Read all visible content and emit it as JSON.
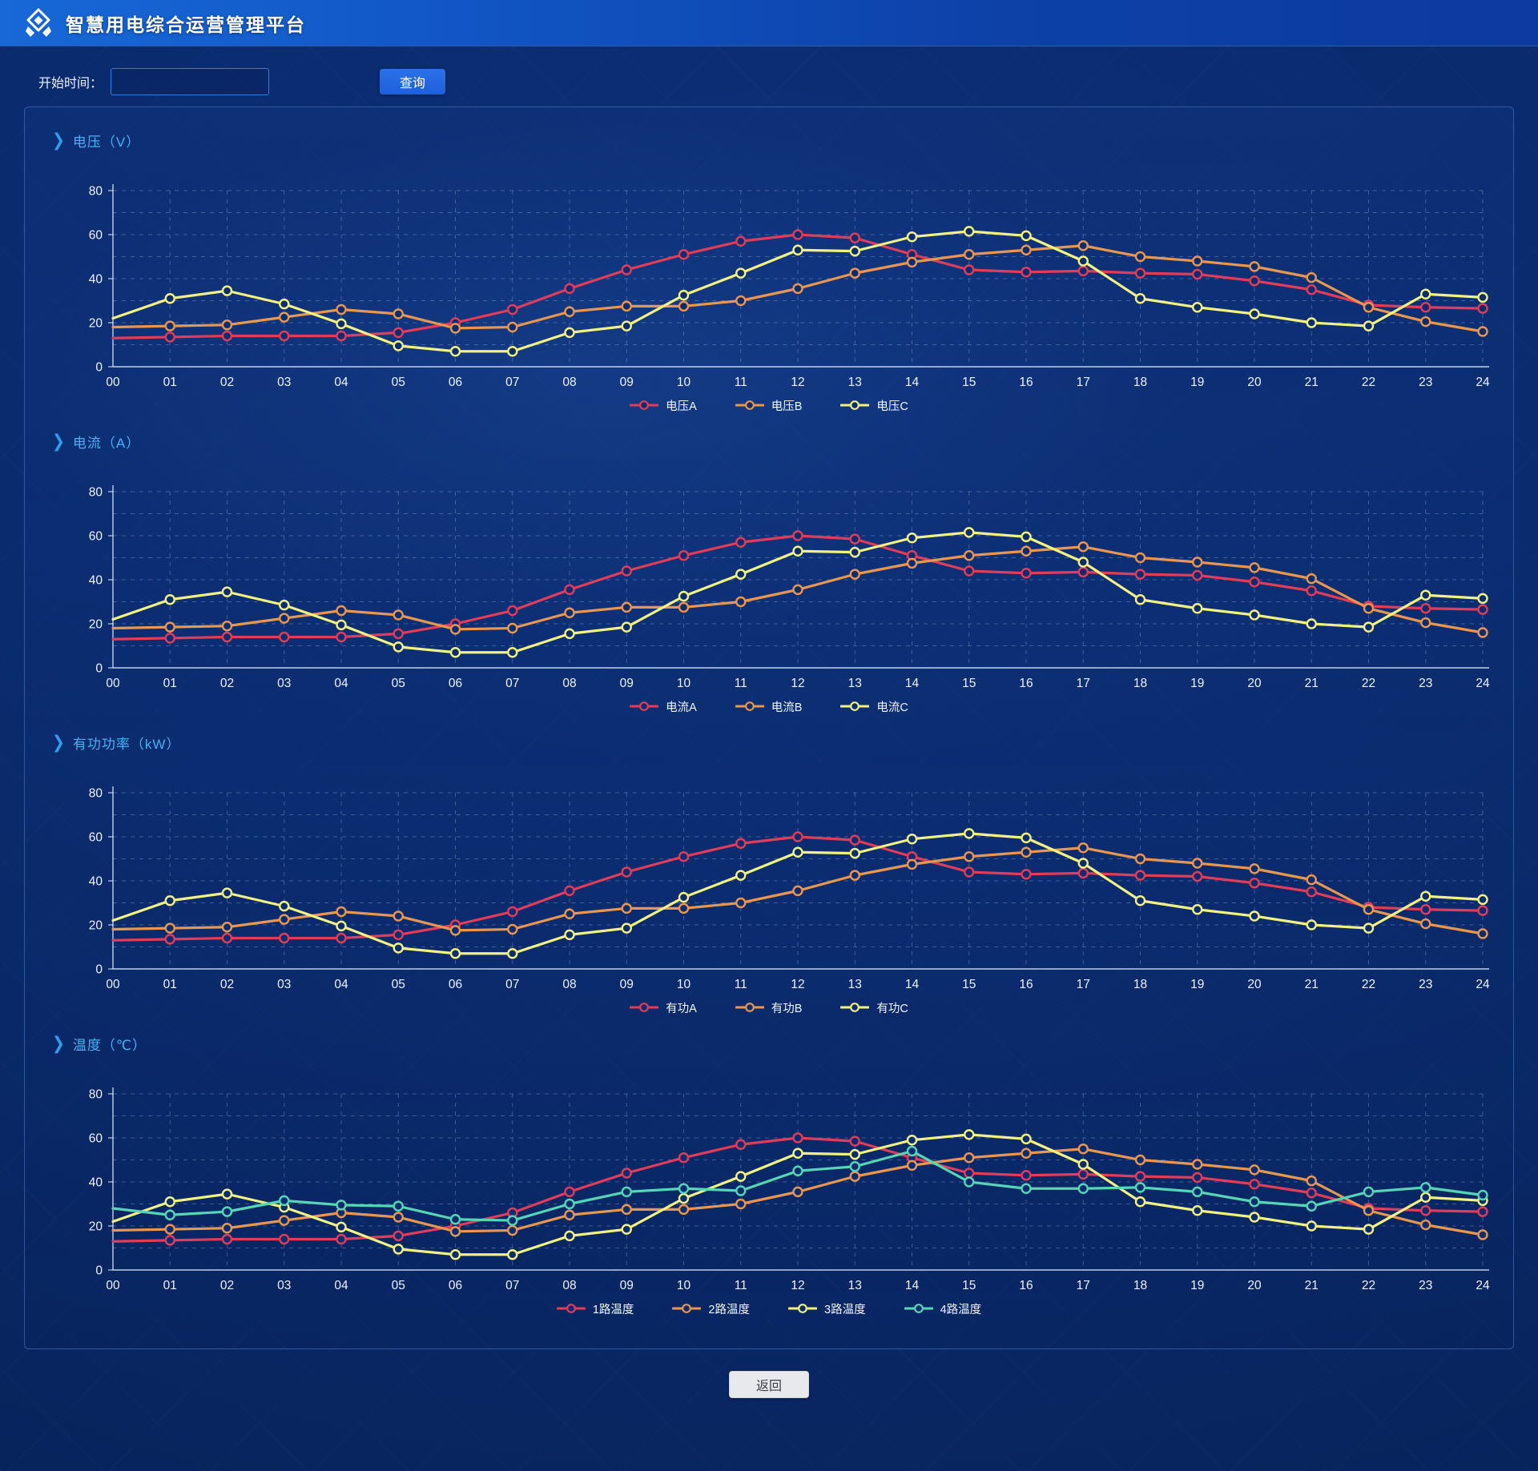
{
  "header": {
    "title": "智慧用电综合运营管理平台"
  },
  "toolbar": {
    "start_time_label": "开始时间：",
    "date_value": "",
    "query_label": "查询"
  },
  "footer": {
    "back_label": "返回"
  },
  "theme": {
    "header_blue": "#1868d8",
    "accent_blue": "#1f66de",
    "title_blue": "#3fb6f7",
    "panel_bg": "#0b2c6e",
    "grid_line": "rgba(190,208,238,0.30)",
    "axis_line": "rgba(225,236,252,0.85)",
    "series_red": "#e23c58",
    "series_orange": "#e9964e",
    "series_yellow": "#f2f280",
    "series_teal": "#55d6b4"
  },
  "chart_data": [
    {
      "type": "line",
      "title": "电压（V）",
      "unit": "V",
      "x": [
        "00",
        "01",
        "02",
        "03",
        "04",
        "05",
        "06",
        "07",
        "08",
        "09",
        "10",
        "11",
        "12",
        "13",
        "14",
        "15",
        "16",
        "17",
        "18",
        "19",
        "20",
        "21",
        "22",
        "23",
        "24"
      ],
      "ylim": [
        0,
        80
      ],
      "yticks": [
        0,
        20,
        40,
        60,
        80
      ],
      "grid": true,
      "legend_position": "bottom",
      "series": [
        {
          "name": "电压A",
          "color": "#e23c58",
          "values": [
            13,
            13.5,
            14,
            14,
            14,
            15.5,
            20,
            26,
            35.5,
            44,
            51,
            57,
            60,
            58.5,
            51,
            44,
            43,
            43.5,
            42.5,
            42,
            39,
            35,
            28,
            27,
            26.5
          ]
        },
        {
          "name": "电压B",
          "color": "#e9964e",
          "values": [
            18,
            18.5,
            19,
            22.5,
            26,
            24,
            17.5,
            18,
            25,
            27.5,
            27.5,
            30,
            35.5,
            42.5,
            47.5,
            51,
            53,
            55,
            50,
            48,
            45.5,
            40.5,
            27,
            20.5,
            16
          ]
        },
        {
          "name": "电压C",
          "color": "#f2f280",
          "values": [
            22,
            31,
            34.5,
            28.5,
            19.5,
            9.5,
            7,
            7,
            15.5,
            18.5,
            32.5,
            42.5,
            53,
            52.5,
            59,
            61.5,
            59.5,
            48,
            31,
            27,
            24,
            20,
            18.5,
            33,
            31.5
          ]
        }
      ]
    },
    {
      "type": "line",
      "title": "电流（A）",
      "unit": "A",
      "x": [
        "00",
        "01",
        "02",
        "03",
        "04",
        "05",
        "06",
        "07",
        "08",
        "09",
        "10",
        "11",
        "12",
        "13",
        "14",
        "15",
        "16",
        "17",
        "18",
        "19",
        "20",
        "21",
        "22",
        "23",
        "24"
      ],
      "ylim": [
        0,
        80
      ],
      "yticks": [
        0,
        20,
        40,
        60,
        80
      ],
      "grid": true,
      "legend_position": "bottom",
      "series": [
        {
          "name": "电流A",
          "color": "#e23c58",
          "values": [
            13,
            13.5,
            14,
            14,
            14,
            15.5,
            20,
            26,
            35.5,
            44,
            51,
            57,
            60,
            58.5,
            51,
            44,
            43,
            43.5,
            42.5,
            42,
            39,
            35,
            28,
            27,
            26.5
          ]
        },
        {
          "name": "电流B",
          "color": "#e9964e",
          "values": [
            18,
            18.5,
            19,
            22.5,
            26,
            24,
            17.5,
            18,
            25,
            27.5,
            27.5,
            30,
            35.5,
            42.5,
            47.5,
            51,
            53,
            55,
            50,
            48,
            45.5,
            40.5,
            27,
            20.5,
            16
          ]
        },
        {
          "name": "电流C",
          "color": "#f2f280",
          "values": [
            22,
            31,
            34.5,
            28.5,
            19.5,
            9.5,
            7,
            7,
            15.5,
            18.5,
            32.5,
            42.5,
            53,
            52.5,
            59,
            61.5,
            59.5,
            48,
            31,
            27,
            24,
            20,
            18.5,
            33,
            31.5
          ]
        }
      ]
    },
    {
      "type": "line",
      "title": "有功功率（kW）",
      "unit": "kW",
      "x": [
        "00",
        "01",
        "02",
        "03",
        "04",
        "05",
        "06",
        "07",
        "08",
        "09",
        "10",
        "11",
        "12",
        "13",
        "14",
        "15",
        "16",
        "17",
        "18",
        "19",
        "20",
        "21",
        "22",
        "23",
        "24"
      ],
      "ylim": [
        0,
        80
      ],
      "yticks": [
        0,
        20,
        40,
        60,
        80
      ],
      "grid": true,
      "legend_position": "bottom",
      "series": [
        {
          "name": "有功A",
          "color": "#e23c58",
          "values": [
            13,
            13.5,
            14,
            14,
            14,
            15.5,
            20,
            26,
            35.5,
            44,
            51,
            57,
            60,
            58.5,
            51,
            44,
            43,
            43.5,
            42.5,
            42,
            39,
            35,
            28,
            27,
            26.5
          ]
        },
        {
          "name": "有功B",
          "color": "#e9964e",
          "values": [
            18,
            18.5,
            19,
            22.5,
            26,
            24,
            17.5,
            18,
            25,
            27.5,
            27.5,
            30,
            35.5,
            42.5,
            47.5,
            51,
            53,
            55,
            50,
            48,
            45.5,
            40.5,
            27,
            20.5,
            16
          ]
        },
        {
          "name": "有功C",
          "color": "#f2f280",
          "values": [
            22,
            31,
            34.5,
            28.5,
            19.5,
            9.5,
            7,
            7,
            15.5,
            18.5,
            32.5,
            42.5,
            53,
            52.5,
            59,
            61.5,
            59.5,
            48,
            31,
            27,
            24,
            20,
            18.5,
            33,
            31.5
          ]
        }
      ]
    },
    {
      "type": "line",
      "title": "温度（℃）",
      "unit": "℃",
      "x": [
        "00",
        "01",
        "02",
        "03",
        "04",
        "05",
        "06",
        "07",
        "08",
        "09",
        "10",
        "11",
        "12",
        "13",
        "14",
        "15",
        "16",
        "17",
        "18",
        "19",
        "20",
        "21",
        "22",
        "23",
        "24"
      ],
      "ylim": [
        0,
        80
      ],
      "yticks": [
        0,
        20,
        40,
        60,
        80
      ],
      "grid": true,
      "legend_position": "bottom",
      "series": [
        {
          "name": "1路温度",
          "color": "#e23c58",
          "values": [
            13,
            13.5,
            14,
            14,
            14,
            15.5,
            20,
            26,
            35.5,
            44,
            51,
            57,
            60,
            58.5,
            51,
            44,
            43,
            43.5,
            42.5,
            42,
            39,
            35,
            28,
            27,
            26.5
          ]
        },
        {
          "name": "2路温度",
          "color": "#e9964e",
          "values": [
            18,
            18.5,
            19,
            22.5,
            26,
            24,
            17.5,
            18,
            25,
            27.5,
            27.5,
            30,
            35.5,
            42.5,
            47.5,
            51,
            53,
            55,
            50,
            48,
            45.5,
            40.5,
            27,
            20.5,
            16
          ]
        },
        {
          "name": "3路温度",
          "color": "#f2f280",
          "values": [
            22,
            31,
            34.5,
            28.5,
            19.5,
            9.5,
            7,
            7,
            15.5,
            18.5,
            32.5,
            42.5,
            53,
            52.5,
            59,
            61.5,
            59.5,
            48,
            31,
            27,
            24,
            20,
            18.5,
            33,
            31.5
          ]
        },
        {
          "name": "4路温度",
          "color": "#55d6b4",
          "values": [
            28,
            25,
            26.5,
            31.5,
            29.5,
            29,
            23,
            22.5,
            30,
            35.5,
            37,
            36,
            45,
            47,
            54,
            40,
            37,
            37,
            37.5,
            35.5,
            31,
            29,
            35.5,
            37.5,
            34
          ]
        }
      ]
    }
  ]
}
